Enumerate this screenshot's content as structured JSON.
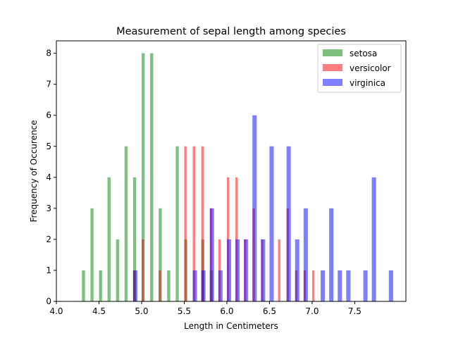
{
  "chart_data": {
    "type": "bar",
    "title": "Measurement of sepal length among species",
    "xlabel": "Length in Centimeters",
    "ylabel": "Frequency of Occurence",
    "xlim": [
      4.0,
      8.1
    ],
    "ylim": [
      0,
      8.4
    ],
    "xticks": [
      "4.0",
      "4.5",
      "5.0",
      "5.5",
      "6.0",
      "6.5",
      "7.0",
      "7.5"
    ],
    "xtick_values": [
      4.0,
      4.5,
      5.0,
      5.5,
      6.0,
      6.5,
      7.0,
      7.5
    ],
    "yticks": [
      "0",
      "1",
      "2",
      "3",
      "4",
      "5",
      "6",
      "7",
      "8"
    ],
    "ytick_values": [
      0,
      1,
      2,
      3,
      4,
      5,
      6,
      7,
      8
    ],
    "grid": false,
    "legend_position": "top-right",
    "series": [
      {
        "name": "setosa",
        "color": "#008000",
        "opacity": 0.5,
        "bin_width": 0.036,
        "x": [
          4.3,
          4.4,
          4.5,
          4.6,
          4.7,
          4.8,
          4.9,
          5.0,
          5.1,
          5.2,
          5.3,
          5.4,
          5.5,
          5.7,
          5.8
        ],
        "values": [
          1,
          3,
          1,
          4,
          2,
          5,
          4,
          8,
          8,
          3,
          1,
          5,
          2,
          2,
          1
        ]
      },
      {
        "name": "versicolor",
        "color": "#ff0000",
        "opacity": 0.5,
        "bin_width": 0.028,
        "x": [
          4.9,
          5.0,
          5.2,
          5.5,
          5.6,
          5.7,
          5.8,
          5.9,
          6.0,
          6.1,
          6.2,
          6.3,
          6.4,
          6.6,
          6.7,
          6.8,
          6.9,
          7.0
        ],
        "values": [
          1,
          2,
          1,
          5,
          5,
          5,
          3,
          2,
          4,
          4,
          2,
          3,
          2,
          2,
          3,
          1,
          1,
          1
        ]
      },
      {
        "name": "virginica",
        "color": "#0000ff",
        "opacity": 0.5,
        "bin_width": 0.05,
        "x": [
          4.9,
          5.6,
          5.7,
          5.8,
          5.9,
          6.0,
          6.1,
          6.2,
          6.3,
          6.4,
          6.5,
          6.7,
          6.8,
          6.9,
          7.1,
          7.2,
          7.3,
          7.4,
          7.6,
          7.7,
          7.9
        ],
        "values": [
          1,
          1,
          1,
          3,
          1,
          2,
          2,
          2,
          6,
          2,
          5,
          5,
          2,
          3,
          1,
          3,
          1,
          1,
          1,
          4,
          1
        ]
      }
    ]
  }
}
